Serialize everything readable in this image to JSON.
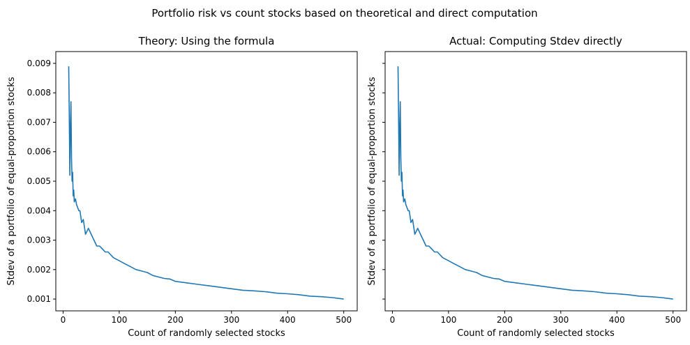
{
  "figure_title": "Portfolio risk vs count stocks based on theoretical and direct computation",
  "line_color": "#1f77b4",
  "chart_data": [
    {
      "type": "line",
      "title": "Theory: Using the formula",
      "xlabel": "Count of randomly selected stocks",
      "ylabel": "Stdev of a portfolio of equal-proportion stocks",
      "xlim": [
        -13,
        524
      ],
      "ylim": [
        0.0006,
        0.0094
      ],
      "xticks": [
        0,
        100,
        200,
        300,
        400,
        500
      ],
      "yticks": [
        0.001,
        0.002,
        0.003,
        0.004,
        0.005,
        0.006,
        0.007,
        0.008,
        0.009
      ],
      "ytick_labels": [
        "0.001",
        "0.002",
        "0.003",
        "0.004",
        "0.005",
        "0.006",
        "0.007",
        "0.008",
        "0.009"
      ],
      "show_ytick_labels": true,
      "grid": false,
      "series": [
        {
          "x": [
            10,
            11,
            12,
            13,
            14,
            15,
            16,
            17,
            18,
            19,
            20,
            22,
            24,
            26,
            28,
            30,
            33,
            36,
            40,
            45,
            50,
            55,
            60,
            65,
            70,
            75,
            80,
            90,
            100,
            110,
            120,
            130,
            140,
            150,
            160,
            170,
            180,
            190,
            200,
            220,
            240,
            260,
            280,
            300,
            320,
            340,
            360,
            380,
            400,
            420,
            440,
            460,
            480,
            500
          ],
          "y": [
            0.0089,
            0.0072,
            0.0052,
            0.0068,
            0.0077,
            0.0058,
            0.005,
            0.0053,
            0.0045,
            0.0047,
            0.0043,
            0.0044,
            0.0042,
            0.0041,
            0.004,
            0.004,
            0.0036,
            0.0037,
            0.0032,
            0.0034,
            0.0032,
            0.003,
            0.0028,
            0.0028,
            0.0027,
            0.0026,
            0.0026,
            0.0024,
            0.0023,
            0.0022,
            0.0021,
            0.002,
            0.00195,
            0.0019,
            0.0018,
            0.00175,
            0.0017,
            0.00168,
            0.0016,
            0.00155,
            0.0015,
            0.00145,
            0.0014,
            0.00135,
            0.0013,
            0.00128,
            0.00125,
            0.0012,
            0.00118,
            0.00115,
            0.0011,
            0.00108,
            0.00105,
            0.001
          ]
        }
      ]
    },
    {
      "type": "line",
      "title": "Actual: Computing Stdev directly",
      "xlabel": "Count of randomly selected stocks",
      "ylabel": "Stdev of a portfolio of equal-proportion stocks",
      "xlim": [
        -13,
        524
      ],
      "ylim": [
        0.0006,
        0.0094
      ],
      "xticks": [
        0,
        100,
        200,
        300,
        400,
        500
      ],
      "yticks": [
        0.001,
        0.002,
        0.003,
        0.004,
        0.005,
        0.006,
        0.007,
        0.008,
        0.009
      ],
      "ytick_labels": [],
      "show_ytick_labels": false,
      "grid": false,
      "series": [
        {
          "x": [
            10,
            11,
            12,
            13,
            14,
            15,
            16,
            17,
            18,
            19,
            20,
            22,
            24,
            26,
            28,
            30,
            33,
            36,
            40,
            45,
            50,
            55,
            60,
            65,
            70,
            75,
            80,
            90,
            100,
            110,
            120,
            130,
            140,
            150,
            160,
            170,
            180,
            190,
            200,
            220,
            240,
            260,
            280,
            300,
            320,
            340,
            360,
            380,
            400,
            420,
            440,
            460,
            480,
            500
          ],
          "y": [
            0.0089,
            0.0072,
            0.0052,
            0.0068,
            0.0077,
            0.0058,
            0.005,
            0.0053,
            0.0045,
            0.0047,
            0.0043,
            0.0044,
            0.0042,
            0.0041,
            0.004,
            0.004,
            0.0036,
            0.0037,
            0.0032,
            0.0034,
            0.0032,
            0.003,
            0.0028,
            0.0028,
            0.0027,
            0.0026,
            0.0026,
            0.0024,
            0.0023,
            0.0022,
            0.0021,
            0.002,
            0.00195,
            0.0019,
            0.0018,
            0.00175,
            0.0017,
            0.00168,
            0.0016,
            0.00155,
            0.0015,
            0.00145,
            0.0014,
            0.00135,
            0.0013,
            0.00128,
            0.00125,
            0.0012,
            0.00118,
            0.00115,
            0.0011,
            0.00108,
            0.00105,
            0.001
          ]
        }
      ]
    }
  ]
}
